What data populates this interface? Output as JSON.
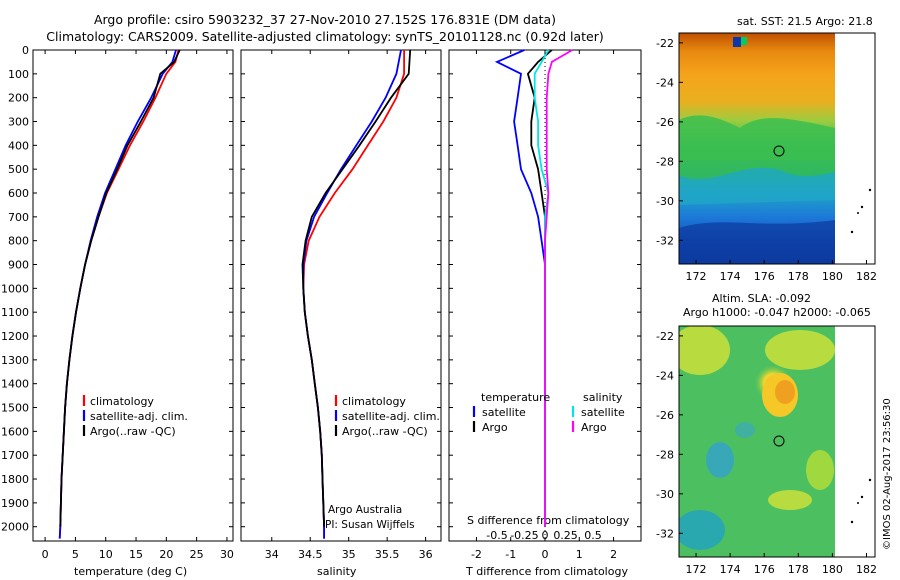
{
  "header": {
    "line1": "Argo profile: csiro 5903232_37 27-Nov-2010 27.152S 176.831E (DM data)",
    "line2": "Climatology: CARS2009. Satellite-adjusted climatology: synTS_20101128.nc (0.92d later)"
  },
  "colors": {
    "climatology": "#ff0000",
    "satellite": "#0000ff",
    "argo": "#000000",
    "salinity_sat": "#00e5e5",
    "salinity_argo": "#ff00ff"
  },
  "chart_data": [
    {
      "type": "line",
      "id": "temperature",
      "xlabel": "temperature (deg C)",
      "ylabel": "",
      "xlim": [
        -2,
        31
      ],
      "ylim": [
        2060,
        0
      ],
      "xticks": [
        0,
        5,
        10,
        15,
        20,
        25,
        30
      ],
      "yticks": [
        0,
        100,
        200,
        300,
        400,
        500,
        600,
        700,
        800,
        900,
        1000,
        1100,
        1200,
        1300,
        1400,
        1500,
        1600,
        1700,
        1800,
        1900,
        2000
      ],
      "series": [
        {
          "name": "climatology",
          "color": "#ff0000",
          "points": [
            [
              22,
              0
            ],
            [
              21.5,
              50
            ],
            [
              20,
              100
            ],
            [
              18.2,
              200
            ],
            [
              16.2,
              300
            ],
            [
              14,
              400
            ],
            [
              12.1,
              500
            ],
            [
              10.2,
              600
            ],
            [
              8.8,
              700
            ],
            [
              7.6,
              800
            ],
            [
              6.6,
              900
            ],
            [
              5.8,
              1000
            ],
            [
              5.1,
              1100
            ],
            [
              4.5,
              1200
            ],
            [
              4,
              1300
            ],
            [
              3.6,
              1400
            ],
            [
              3.3,
              1500
            ],
            [
              3.1,
              1600
            ],
            [
              2.9,
              1700
            ],
            [
              2.7,
              1800
            ],
            [
              2.6,
              1900
            ],
            [
              2.5,
              2000
            ],
            [
              2.4,
              2050
            ]
          ]
        },
        {
          "name": "satellite-adj. clim.",
          "color": "#0000ff",
          "points": [
            [
              21.6,
              0
            ],
            [
              21,
              50
            ],
            [
              19.4,
              100
            ],
            [
              17.5,
              200
            ],
            [
              15.3,
              300
            ],
            [
              13.3,
              400
            ],
            [
              11.6,
              500
            ],
            [
              9.9,
              600
            ],
            [
              8.6,
              700
            ],
            [
              7.5,
              800
            ],
            [
              6.6,
              900
            ],
            [
              5.8,
              1000
            ],
            [
              5.1,
              1100
            ],
            [
              4.5,
              1200
            ],
            [
              4,
              1300
            ],
            [
              3.6,
              1400
            ],
            [
              3.3,
              1500
            ],
            [
              3.1,
              1600
            ],
            [
              2.9,
              1700
            ],
            [
              2.7,
              1800
            ],
            [
              2.6,
              1900
            ],
            [
              2.5,
              2000
            ],
            [
              2.4,
              2050
            ]
          ]
        },
        {
          "name": "Argo(..raw -QC)",
          "color": "#000000",
          "points": [
            [
              22.2,
              0
            ],
            [
              21.3,
              50
            ],
            [
              19,
              100
            ],
            [
              17.9,
              200
            ],
            [
              15.8,
              300
            ],
            [
              13.6,
              400
            ],
            [
              11.9,
              500
            ],
            [
              10.1,
              600
            ],
            [
              8.8,
              700
            ],
            [
              7.6,
              800
            ],
            [
              6.6,
              900
            ],
            [
              5.8,
              1000
            ],
            [
              5.1,
              1100
            ],
            [
              4.5,
              1200
            ],
            [
              4,
              1300
            ],
            [
              3.6,
              1400
            ],
            [
              3.3,
              1500
            ],
            [
              3.1,
              1600
            ],
            [
              2.9,
              1700
            ],
            [
              2.7,
              1800
            ],
            [
              2.6,
              1900
            ],
            [
              2.5,
              2000
            ]
          ]
        }
      ],
      "legend": [
        "climatology",
        "satellite-adj. clim.",
        "Argo(..raw -QC)"
      ]
    },
    {
      "type": "line",
      "id": "salinity",
      "xlabel": "salinity",
      "ylabel": "",
      "xlim": [
        33.6,
        36.2
      ],
      "ylim": [
        2060,
        0
      ],
      "xticks": [
        34,
        34.5,
        35,
        35.5,
        36
      ],
      "series": [
        {
          "name": "climatology",
          "color": "#ff0000",
          "points": [
            [
              35.72,
              0
            ],
            [
              35.72,
              100
            ],
            [
              35.62,
              200
            ],
            [
              35.45,
              300
            ],
            [
              35.25,
              400
            ],
            [
              35.05,
              500
            ],
            [
              34.82,
              600
            ],
            [
              34.62,
              700
            ],
            [
              34.48,
              800
            ],
            [
              34.42,
              900
            ],
            [
              34.41,
              1000
            ],
            [
              34.43,
              1100
            ],
            [
              34.47,
              1200
            ],
            [
              34.52,
              1300
            ],
            [
              34.56,
              1400
            ],
            [
              34.6,
              1500
            ],
            [
              34.63,
              1600
            ],
            [
              34.65,
              1700
            ],
            [
              34.66,
              1800
            ],
            [
              34.67,
              1900
            ],
            [
              34.68,
              2000
            ],
            [
              34.68,
              2050
            ]
          ]
        },
        {
          "name": "satellite-adj. clim.",
          "color": "#0000ff",
          "points": [
            [
              35.68,
              0
            ],
            [
              35.62,
              100
            ],
            [
              35.48,
              200
            ],
            [
              35.3,
              300
            ],
            [
              35.1,
              400
            ],
            [
              34.9,
              500
            ],
            [
              34.72,
              600
            ],
            [
              34.55,
              700
            ],
            [
              34.45,
              800
            ],
            [
              34.41,
              900
            ],
            [
              34.41,
              1000
            ],
            [
              34.43,
              1100
            ],
            [
              34.47,
              1200
            ],
            [
              34.52,
              1300
            ],
            [
              34.56,
              1400
            ],
            [
              34.6,
              1500
            ],
            [
              34.63,
              1600
            ],
            [
              34.65,
              1700
            ],
            [
              34.66,
              1800
            ],
            [
              34.67,
              1900
            ],
            [
              34.68,
              2000
            ],
            [
              34.68,
              2050
            ]
          ]
        },
        {
          "name": "Argo(..raw -QC)",
          "color": "#000000",
          "points": [
            [
              35.8,
              0
            ],
            [
              35.78,
              100
            ],
            [
              35.55,
              200
            ],
            [
              35.35,
              300
            ],
            [
              35.14,
              400
            ],
            [
              34.92,
              500
            ],
            [
              34.7,
              600
            ],
            [
              34.52,
              700
            ],
            [
              34.44,
              800
            ],
            [
              34.4,
              900
            ],
            [
              34.41,
              1000
            ],
            [
              34.43,
              1100
            ],
            [
              34.47,
              1200
            ],
            [
              34.52,
              1300
            ],
            [
              34.56,
              1400
            ],
            [
              34.6,
              1500
            ],
            [
              34.63,
              1600
            ],
            [
              34.65,
              1700
            ],
            [
              34.66,
              1800
            ],
            [
              34.67,
              1900
            ],
            [
              34.68,
              2000
            ]
          ]
        }
      ],
      "legend": [
        "climatology",
        "satellite-adj. clim.",
        "Argo(..raw -QC)"
      ],
      "annotations": [
        "Argo Australia",
        "PI: Susan Wijffels"
      ]
    },
    {
      "type": "line",
      "id": "differences",
      "xlabel": "T difference from climatology",
      "xlabel_top": "S difference from climatology",
      "xlim": [
        -2.8,
        2.8
      ],
      "ylim": [
        2060,
        0
      ],
      "xticks": [
        -2,
        -1,
        0,
        1,
        2
      ],
      "xticks_s": [
        "-0.5",
        "-0.25",
        "0",
        "0.25",
        "0.5"
      ],
      "series": [
        {
          "name": "temperature satellite",
          "color": "#0000ff",
          "points": [
            [
              -0.6,
              0
            ],
            [
              -1.4,
              50
            ],
            [
              -0.7,
              100
            ],
            [
              -0.8,
              200
            ],
            [
              -0.9,
              300
            ],
            [
              -0.8,
              400
            ],
            [
              -0.7,
              500
            ],
            [
              -0.4,
              600
            ],
            [
              -0.2,
              700
            ],
            [
              -0.1,
              800
            ],
            [
              0,
              900
            ],
            [
              0,
              1100
            ],
            [
              0,
              1500
            ],
            [
              0,
              2000
            ]
          ]
        },
        {
          "name": "temperature Argo",
          "color": "#000000",
          "points": [
            [
              0.2,
              0
            ],
            [
              -0.2,
              50
            ],
            [
              -0.5,
              100
            ],
            [
              -0.3,
              200
            ],
            [
              -0.4,
              300
            ],
            [
              -0.4,
              400
            ],
            [
              -0.2,
              500
            ],
            [
              -0.1,
              600
            ],
            [
              0,
              700
            ],
            [
              0,
              800
            ],
            [
              0,
              1000
            ],
            [
              0,
              1500
            ],
            [
              0,
              2000
            ]
          ]
        },
        {
          "name": "salinity satellite",
          "color": "#00e5e5",
          "points": [
            [
              0.1,
              0
            ],
            [
              -0.1,
              50
            ],
            [
              -0.3,
              100
            ],
            [
              -0.3,
              200
            ],
            [
              -0.2,
              300
            ],
            [
              -0.2,
              400
            ],
            [
              -0.1,
              500
            ],
            [
              0.1,
              600
            ],
            [
              0,
              700
            ],
            [
              0,
              800
            ],
            [
              0,
              1000
            ],
            [
              0,
              1500
            ],
            [
              0,
              2000
            ]
          ]
        },
        {
          "name": "salinity Argo",
          "color": "#ff00ff",
          "points": [
            [
              0.8,
              0
            ],
            [
              0.2,
              50
            ],
            [
              0.1,
              100
            ],
            [
              0.05,
              200
            ],
            [
              0.05,
              300
            ],
            [
              0.05,
              400
            ],
            [
              0.05,
              500
            ],
            [
              0.1,
              600
            ],
            [
              0.05,
              700
            ],
            [
              0,
              800
            ],
            [
              0,
              1000
            ],
            [
              0,
              1500
            ],
            [
              0,
              2000
            ]
          ]
        }
      ],
      "legend_headers": [
        "temperature",
        "salinity"
      ],
      "legend": [
        "satellite",
        "Argo",
        "satellite",
        "Argo"
      ]
    },
    {
      "type": "heatmap",
      "id": "sst_map",
      "title": "sat. SST: 21.5  Argo: 21.8",
      "xticks": [
        172,
        174,
        176,
        178,
        180,
        182
      ],
      "yticks": [
        -22,
        -24,
        -26,
        -28,
        -30,
        -32
      ],
      "xlim": [
        171,
        182.5
      ],
      "ylim": [
        -33.2,
        -21.5
      ],
      "marker": [
        176.831,
        -27.152
      ]
    },
    {
      "type": "heatmap",
      "id": "sla_map",
      "title": "Altim. SLA: -0.092",
      "subtitle": "Argo h1000: -0.047 h2000: -0.065",
      "xticks": [
        172,
        174,
        176,
        178,
        180,
        182
      ],
      "yticks": [
        -22,
        -24,
        -26,
        -28,
        -30,
        -32
      ],
      "xlim": [
        171,
        182.5
      ],
      "ylim": [
        -33.2,
        -21.5
      ],
      "marker": [
        176.831,
        -27.152
      ]
    }
  ],
  "footer": {
    "credit": "©IMOS 02-Aug-2017 23:56:30"
  }
}
